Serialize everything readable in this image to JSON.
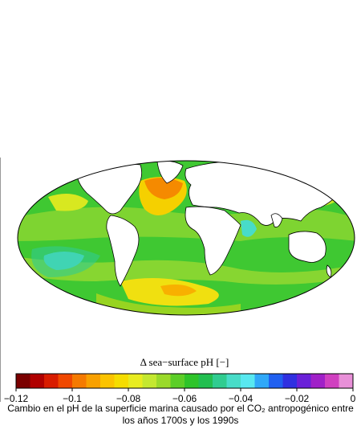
{
  "colorbar": {
    "title": "Δ sea−surface pH [−]",
    "range": [
      -0.12,
      0
    ],
    "ticks": [
      {
        "value": -0.12,
        "label": "−0.12"
      },
      {
        "value": -0.1,
        "label": "−0.1"
      },
      {
        "value": -0.08,
        "label": "−0.08"
      },
      {
        "value": -0.06,
        "label": "−0.06"
      },
      {
        "value": -0.04,
        "label": "−0.04"
      },
      {
        "value": -0.02,
        "label": "−0.02"
      },
      0
    ],
    "colors": [
      "#7a0000",
      "#b00000",
      "#d81c00",
      "#f04800",
      "#f57a00",
      "#f8a000",
      "#fbc300",
      "#f5dd00",
      "#e8ec20",
      "#c4e830",
      "#9ada2a",
      "#5cce28",
      "#2ec42a",
      "#22bf50",
      "#30cc90",
      "#48dcc8",
      "#58e8f0",
      "#30a8f8",
      "#2060f0",
      "#3030e0",
      "#6a20d8",
      "#a020c8",
      "#d040c0",
      "#e890d8"
    ]
  },
  "caption": {
    "lines": [
      "Cambio en el pH de la superficie marina causado por el CO₂ antropogénico entre",
      "los años 1700s y los 1990s"
    ]
  }
}
